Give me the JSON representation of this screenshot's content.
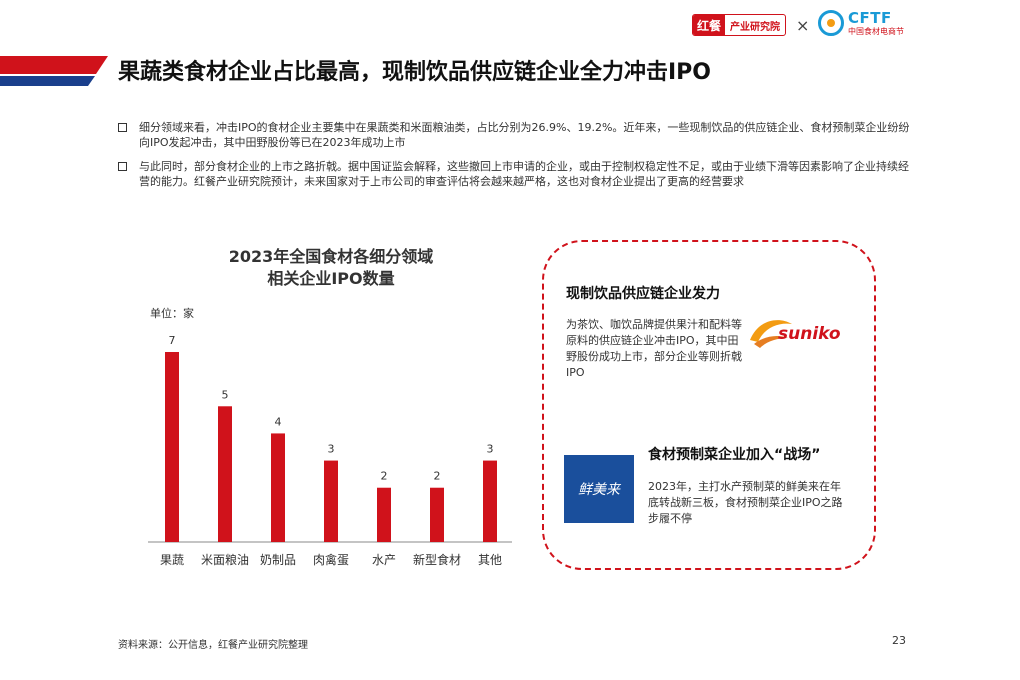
{
  "header": {
    "left_logo_mark": "红餐",
    "left_logo_text": "产业研究院",
    "times": "×",
    "right_logo_text": "CFTF",
    "right_logo_sub": "中国食材电商节"
  },
  "title": "果蔬类食材企业占比最高，现制饮品供应链企业全力冲击IPO",
  "bullets": [
    "细分领域来看，冲击IPO的食材企业主要集中在果蔬类和米面粮油类，占比分别为26.9%、19.2%。近年来，一些现制饮品的供应链企业、食材预制菜企业纷纷向IPO发起冲击，其中田野股份等已在2023年成功上市",
    "与此同时，部分食材企业的上市之路折戟。据中国证监会解释，这些撤回上市申请的企业，或由于控制权稳定性不足，或由于业绩下滑等因素影响了企业持续经营的能力。红餐产业研究院预计，未来国家对于上市公司的审查评估将会越来越严格，这也对食材企业提出了更高的经营要求"
  ],
  "chart_data": {
    "type": "bar",
    "title_line1": "2023年全国食材各细分领域",
    "title_line2": "相关企业IPO数量",
    "unit": "单位：家",
    "categories": [
      "果蔬",
      "米面粮油",
      "奶制品",
      "肉禽蛋",
      "水产",
      "新型食材",
      "其他"
    ],
    "values": [
      7,
      5,
      4,
      3,
      2,
      2,
      3
    ],
    "ylim": [
      0,
      7
    ],
    "bar_color": "#d0121b",
    "grid": false
  },
  "card": {
    "section1_title": "现制饮品供应链企业发力",
    "section1_text": "为茶饮、咖饮品牌提供果汁和配料等原料的供应链企业冲击IPO，其中田野股份成功上市，部分企业等则折戟IPO",
    "section1_logo": "suniko",
    "section2_title": "食材预制菜企业加入“战场”",
    "section2_text": "2023年，主打水产预制菜的鲜美来在年底转战新三板，食材预制菜企业IPO之路步履不停",
    "section2_logo": "鲜美来"
  },
  "footer": {
    "source": "资料来源：公开信息，红餐产业研究院整理",
    "page": "23"
  },
  "colors": {
    "accent": "#d0121b",
    "navy": "#1a3f8c",
    "logo_blue": "#1a4f9c"
  }
}
